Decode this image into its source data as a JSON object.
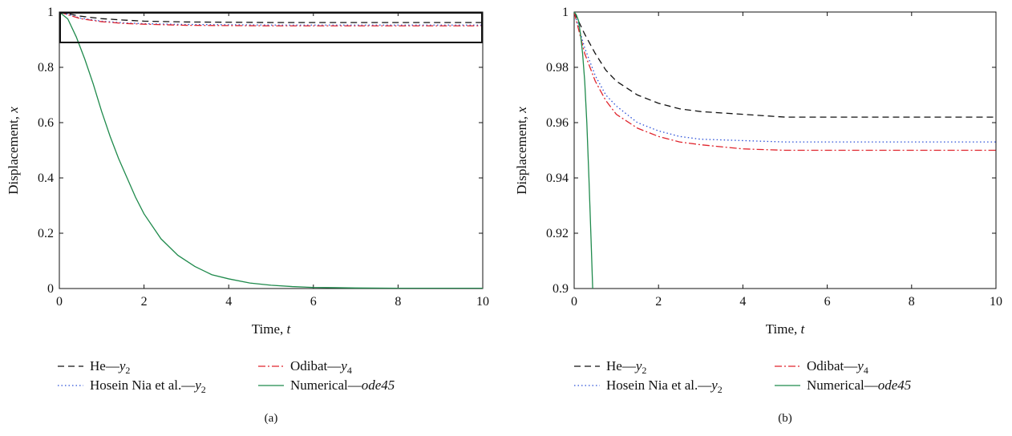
{
  "chart_data": [
    {
      "type": "line",
      "panel_label": "(a)",
      "xlabel_main": "Time, ",
      "xlabel_var": "t",
      "ylabel_main": "Displacement, ",
      "ylabel_var": "x",
      "xlim": [
        0,
        10
      ],
      "ylim": [
        0,
        1
      ],
      "xticks": [
        0,
        2,
        4,
        6,
        8,
        10
      ],
      "yticks": [
        0,
        0.2,
        0.4,
        0.6,
        0.8,
        1
      ],
      "zoom_box": {
        "x": [
          0,
          10
        ],
        "y": [
          0.89,
          1.0
        ]
      },
      "series": [
        {
          "name_main": "He—",
          "name_var": "y",
          "name_sub": "2",
          "color": "#111111",
          "dash": "8,5",
          "x": [
            0,
            0.5,
            1,
            1.5,
            2,
            3,
            4,
            5,
            6,
            7,
            8,
            9,
            10
          ],
          "y": [
            1,
            0.985,
            0.976,
            0.971,
            0.967,
            0.964,
            0.963,
            0.962,
            0.962,
            0.962,
            0.962,
            0.962,
            0.962
          ]
        },
        {
          "name_main": "Hosein Nia et al.—",
          "name_var": "y",
          "name_sub": "2",
          "color": "#2a4fd8",
          "dash": "1.5,3",
          "x": [
            0,
            0.5,
            1,
            1.5,
            2,
            3,
            4,
            5,
            6,
            7,
            8,
            9,
            10
          ],
          "y": [
            1,
            0.978,
            0.967,
            0.961,
            0.958,
            0.955,
            0.954,
            0.953,
            0.953,
            0.953,
            0.953,
            0.953,
            0.953
          ]
        },
        {
          "name_main": "Odibat—",
          "name_var": "y",
          "name_sub": "4",
          "color": "#e0242c",
          "dash": "9,3,2,3",
          "x": [
            0,
            0.5,
            1,
            1.5,
            2,
            3,
            4,
            5,
            6,
            7,
            8,
            9,
            10
          ],
          "y": [
            1,
            0.976,
            0.965,
            0.959,
            0.956,
            0.952,
            0.951,
            0.95,
            0.95,
            0.95,
            0.95,
            0.95,
            0.95
          ]
        },
        {
          "name_main": "Numerical—",
          "name_var": "ode45",
          "name_sub": "",
          "color": "#1f8a4c",
          "dash": "",
          "x": [
            0,
            0.2,
            0.4,
            0.6,
            0.8,
            1,
            1.2,
            1.4,
            1.6,
            1.8,
            2,
            2.4,
            2.8,
            3.2,
            3.6,
            4,
            4.5,
            5,
            5.5,
            6,
            6.5,
            7,
            8,
            9,
            10
          ],
          "y": [
            1,
            0.975,
            0.91,
            0.83,
            0.74,
            0.64,
            0.55,
            0.47,
            0.4,
            0.33,
            0.27,
            0.18,
            0.12,
            0.08,
            0.05,
            0.035,
            0.02,
            0.012,
            0.007,
            0.004,
            0.003,
            0.002,
            0.001,
            0.001,
            0.001
          ]
        }
      ]
    },
    {
      "type": "line",
      "panel_label": "(b)",
      "xlabel_main": "Time, ",
      "xlabel_var": "t",
      "ylabel_main": "Displacement, ",
      "ylabel_var": "x",
      "xlim": [
        0,
        10
      ],
      "ylim": [
        0.9,
        1
      ],
      "xticks": [
        0,
        2,
        4,
        6,
        8,
        10
      ],
      "yticks": [
        0.9,
        0.92,
        0.94,
        0.96,
        0.98,
        1
      ],
      "series": [
        {
          "name_main": "He—",
          "name_var": "y",
          "name_sub": "2",
          "color": "#111111",
          "dash": "8,5",
          "x": [
            0,
            0.25,
            0.5,
            0.75,
            1,
            1.5,
            2,
            2.5,
            3,
            4,
            5,
            6,
            7,
            8,
            9,
            10
          ],
          "y": [
            1,
            0.992,
            0.985,
            0.979,
            0.975,
            0.97,
            0.967,
            0.965,
            0.964,
            0.963,
            0.962,
            0.962,
            0.962,
            0.962,
            0.962,
            0.962
          ]
        },
        {
          "name_main": "Hosein Nia et al.—",
          "name_var": "y",
          "name_sub": "2",
          "color": "#2a4fd8",
          "dash": "1.5,3",
          "x": [
            0,
            0.25,
            0.5,
            0.75,
            1,
            1.5,
            2,
            2.5,
            3,
            4,
            5,
            6,
            7,
            8,
            9,
            10
          ],
          "y": [
            1,
            0.987,
            0.977,
            0.97,
            0.966,
            0.96,
            0.957,
            0.955,
            0.954,
            0.9535,
            0.953,
            0.953,
            0.953,
            0.953,
            0.953,
            0.953
          ]
        },
        {
          "name_main": "Odibat—",
          "name_var": "y",
          "name_sub": "4",
          "color": "#e0242c",
          "dash": "9,3,2,3",
          "x": [
            0,
            0.25,
            0.5,
            0.75,
            1,
            1.5,
            2,
            2.5,
            3,
            4,
            5,
            6,
            7,
            8,
            9,
            10
          ],
          "y": [
            1,
            0.985,
            0.975,
            0.968,
            0.963,
            0.958,
            0.955,
            0.953,
            0.952,
            0.9505,
            0.95,
            0.95,
            0.95,
            0.95,
            0.95,
            0.95
          ]
        },
        {
          "name_main": "Numerical—",
          "name_var": "ode45",
          "name_sub": "",
          "color": "#1f8a4c",
          "dash": "",
          "x": [
            0,
            0.05,
            0.1,
            0.15,
            0.2,
            0.25,
            0.3,
            0.35,
            0.4,
            0.45
          ],
          "y": [
            1,
            0.999,
            0.997,
            0.992,
            0.985,
            0.975,
            0.96,
            0.94,
            0.918,
            0.895
          ]
        }
      ]
    }
  ]
}
